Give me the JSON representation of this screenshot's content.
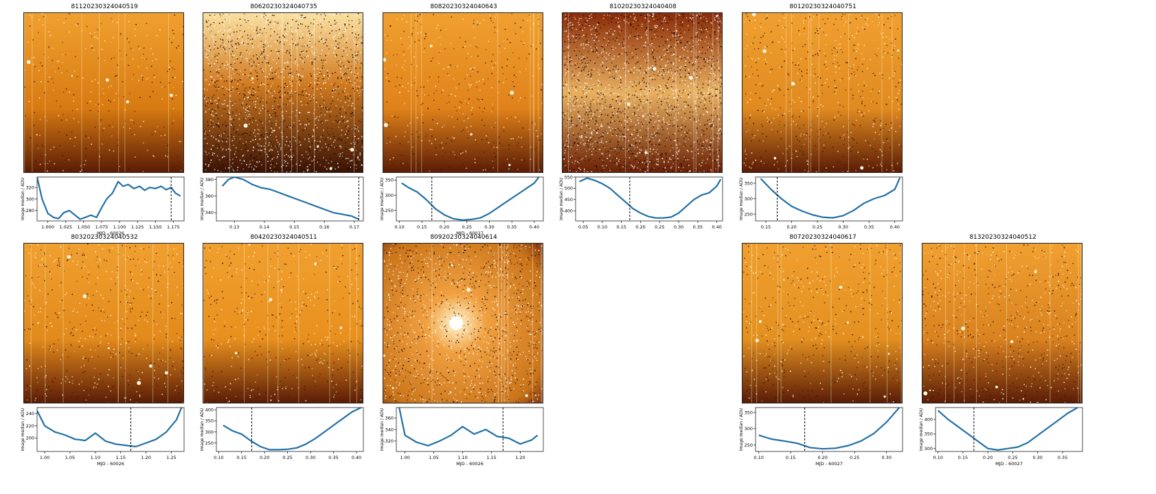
{
  "figure": {
    "ylabel": "Image median / ADU"
  },
  "colors": {
    "line": "#1f6fa6",
    "frame": "#222222",
    "vline": "#000000"
  },
  "chart_data": [
    {
      "type": "line",
      "title": "81120230324040519",
      "xlabel": "MJD - 60026",
      "ylabel": "Image median / ADU",
      "xlim": [
        0.985,
        1.19
      ],
      "ylim": [
        262,
        338
      ],
      "xticks": [
        1.0,
        1.025,
        1.05,
        1.075,
        1.1,
        1.125,
        1.15,
        1.175
      ],
      "xticklabels": [
        "1.000",
        "1.025",
        "1.050",
        "1.075",
        "1.100",
        "1.125",
        "1.150",
        "1.175"
      ],
      "yticks": [
        280,
        300,
        320
      ],
      "yticklabels": [
        "280",
        "300",
        "320"
      ],
      "vline": 1.172,
      "x": [
        0.985,
        0.992,
        1.0,
        1.008,
        1.015,
        1.022,
        1.03,
        1.038,
        1.045,
        1.052,
        1.06,
        1.068,
        1.075,
        1.082,
        1.09,
        1.098,
        1.105,
        1.112,
        1.12,
        1.128,
        1.135,
        1.142,
        1.15,
        1.158,
        1.165,
        1.172,
        1.178,
        1.185
      ],
      "y": [
        338,
        300,
        275,
        268,
        266,
        276,
        280,
        272,
        265,
        268,
        272,
        268,
        285,
        300,
        310,
        330,
        322,
        325,
        318,
        322,
        315,
        320,
        318,
        322,
        316,
        320,
        310,
        305
      ]
    },
    {
      "type": "line",
      "title": "80620230324040735",
      "xlabel": "",
      "ylabel": "Image median / ADU",
      "xlim": [
        0.124,
        0.173
      ],
      "ylim": [
        330,
        383
      ],
      "xticks": [
        0.13,
        0.14,
        0.15,
        0.16,
        0.17
      ],
      "xticklabels": [
        "0.13",
        "0.14",
        "0.15",
        "0.16",
        "0.17"
      ],
      "yticks": [
        340,
        360,
        380
      ],
      "yticklabels": [
        "340",
        "360",
        "380"
      ],
      "vline": 0.1715,
      "x": [
        0.126,
        0.128,
        0.13,
        0.133,
        0.136,
        0.139,
        0.142,
        0.145,
        0.148,
        0.151,
        0.154,
        0.157,
        0.16,
        0.163,
        0.166,
        0.169,
        0.1715
      ],
      "y": [
        372,
        380,
        383,
        380,
        374,
        370,
        368,
        364,
        360,
        356,
        352,
        348,
        344,
        340,
        338,
        336,
        332
      ]
    },
    {
      "type": "line",
      "title": "80820230324040643",
      "xlabel": "MJD - 60027",
      "ylabel": "Image median / ADU",
      "xlim": [
        0.093,
        0.42
      ],
      "ylim": [
        215,
        360
      ],
      "xticks": [
        0.1,
        0.15,
        0.2,
        0.25,
        0.3,
        0.35,
        0.4
      ],
      "xticklabels": [
        "0.10",
        "0.15",
        "0.20",
        "0.25",
        "0.30",
        "0.35",
        "0.40"
      ],
      "yticks": [
        250,
        300,
        350
      ],
      "yticklabels": [
        "250",
        "300",
        "350"
      ],
      "vline": 0.172,
      "x": [
        0.105,
        0.12,
        0.14,
        0.16,
        0.18,
        0.2,
        0.22,
        0.24,
        0.26,
        0.28,
        0.3,
        0.32,
        0.34,
        0.36,
        0.38,
        0.4,
        0.41
      ],
      "y": [
        340,
        325,
        310,
        285,
        255,
        235,
        222,
        218,
        220,
        225,
        240,
        260,
        280,
        300,
        320,
        340,
        360
      ]
    },
    {
      "type": "line",
      "title": "81020230324040408",
      "xlabel": "",
      "ylabel": "Image median / ADU",
      "xlim": [
        0.03,
        0.415
      ],
      "ylim": [
        355,
        550
      ],
      "xticks": [
        0.05,
        0.1,
        0.15,
        0.2,
        0.25,
        0.3,
        0.35,
        0.4
      ],
      "xticklabels": [
        "0.05",
        "0.10",
        "0.15",
        "0.20",
        "0.25",
        "0.30",
        "0.35",
        "0.40"
      ],
      "yticks": [
        400,
        450,
        500,
        550
      ],
      "yticklabels": [
        "400",
        "450",
        "500",
        "550"
      ],
      "vline": 0.172,
      "x": [
        0.04,
        0.06,
        0.08,
        0.1,
        0.12,
        0.14,
        0.16,
        0.18,
        0.2,
        0.22,
        0.24,
        0.26,
        0.28,
        0.3,
        0.32,
        0.34,
        0.36,
        0.38,
        0.4,
        0.41
      ],
      "y": [
        530,
        545,
        535,
        520,
        500,
        470,
        440,
        410,
        390,
        375,
        368,
        368,
        372,
        390,
        420,
        450,
        470,
        480,
        510,
        540
      ]
    },
    {
      "type": "line",
      "title": "80120230324040751",
      "xlabel": "",
      "ylabel": "Image median / ADU",
      "xlim": [
        0.13,
        0.415
      ],
      "ylim": [
        228,
        370
      ],
      "xticks": [
        0.15,
        0.2,
        0.25,
        0.3,
        0.35,
        0.4
      ],
      "xticklabels": [
        "0.15",
        "0.20",
        "0.25",
        "0.30",
        "0.35",
        "0.40"
      ],
      "yticks": [
        250,
        300,
        350
      ],
      "yticklabels": [
        "250",
        "300",
        "350"
      ],
      "vline": 0.172,
      "x": [
        0.14,
        0.16,
        0.18,
        0.2,
        0.22,
        0.24,
        0.26,
        0.28,
        0.3,
        0.32,
        0.34,
        0.36,
        0.38,
        0.4,
        0.41
      ],
      "y": [
        365,
        330,
        300,
        275,
        260,
        248,
        240,
        238,
        245,
        262,
        285,
        300,
        310,
        330,
        368
      ]
    },
    {
      "type": "line",
      "title": "80320230324040532",
      "xlabel": "MJD - 60026",
      "ylabel": "Image median / ADU",
      "xlim": [
        0.985,
        1.275
      ],
      "ylim": [
        178,
        250
      ],
      "xticks": [
        1.0,
        1.05,
        1.1,
        1.15,
        1.2,
        1.25
      ],
      "xticklabels": [
        "1.00",
        "1.05",
        "1.10",
        "1.15",
        "1.20",
        "1.25"
      ],
      "yticks": [
        200,
        220,
        240
      ],
      "yticklabels": [
        "200",
        "220",
        "240"
      ],
      "vline": 1.17,
      "x": [
        0.985,
        1.0,
        1.02,
        1.04,
        1.06,
        1.08,
        1.1,
        1.12,
        1.14,
        1.16,
        1.18,
        1.2,
        1.22,
        1.24,
        1.26,
        1.27
      ],
      "y": [
        245,
        220,
        210,
        205,
        198,
        196,
        208,
        195,
        190,
        188,
        186,
        192,
        198,
        210,
        230,
        250
      ]
    },
    {
      "type": "line",
      "title": "80420230324040511",
      "xlabel": "",
      "ylabel": "Image median / ADU",
      "xlim": [
        0.095,
        0.415
      ],
      "ylim": [
        212,
        410
      ],
      "xticks": [
        0.1,
        0.15,
        0.2,
        0.25,
        0.3,
        0.35,
        0.4
      ],
      "xticklabels": [
        "0.10",
        "0.15",
        "0.20",
        "0.25",
        "0.30",
        "0.35",
        "0.40"
      ],
      "yticks": [
        250,
        300,
        350,
        400
      ],
      "yticklabels": [
        "250",
        "300",
        "350",
        "400"
      ],
      "vline": 0.172,
      "x": [
        0.11,
        0.13,
        0.15,
        0.17,
        0.19,
        0.21,
        0.23,
        0.25,
        0.27,
        0.29,
        0.31,
        0.33,
        0.35,
        0.37,
        0.39,
        0.41
      ],
      "y": [
        330,
        305,
        290,
        260,
        235,
        220,
        220,
        222,
        228,
        245,
        270,
        300,
        330,
        360,
        390,
        410
      ]
    },
    {
      "type": "line",
      "title": "80920230324040614",
      "xlabel": "MJD - 60026",
      "ylabel": "Image median / ADU",
      "xlim": [
        0.985,
        1.24
      ],
      "ylim": [
        302,
        378
      ],
      "xticks": [
        1.0,
        1.05,
        1.1,
        1.15,
        1.2
      ],
      "xticklabels": [
        "1.00",
        "1.05",
        "1.10",
        "1.15",
        "1.20"
      ],
      "yticks": [
        320,
        340,
        360
      ],
      "yticklabels": [
        "320",
        "340",
        "360"
      ],
      "vline": 1.17,
      "x": [
        0.99,
        1.0,
        1.02,
        1.04,
        1.06,
        1.08,
        1.1,
        1.12,
        1.14,
        1.16,
        1.18,
        1.2,
        1.22,
        1.23
      ],
      "y": [
        378,
        330,
        318,
        312,
        320,
        330,
        345,
        332,
        340,
        328,
        325,
        315,
        322,
        330
      ]
    },
    {
      "type": "line",
      "title": "80720230324040617",
      "xlabel": "MJD - 60027",
      "ylabel": "Image median / ADU",
      "xlim": [
        0.095,
        0.325
      ],
      "ylim": [
        230,
        365
      ],
      "xticks": [
        0.1,
        0.15,
        0.2,
        0.25,
        0.3
      ],
      "xticklabels": [
        "0.10",
        "0.15",
        "0.20",
        "0.25",
        "0.30"
      ],
      "yticks": [
        250,
        300,
        350
      ],
      "yticklabels": [
        "250",
        "300",
        "350"
      ],
      "vline": 0.172,
      "x": [
        0.1,
        0.12,
        0.14,
        0.16,
        0.18,
        0.2,
        0.22,
        0.24,
        0.26,
        0.28,
        0.3,
        0.32
      ],
      "y": [
        280,
        268,
        262,
        255,
        242,
        238,
        240,
        248,
        262,
        285,
        320,
        365
      ]
    },
    {
      "type": "line",
      "title": "81320230324040512",
      "xlabel": "MJD - 60027",
      "ylabel": "Image median / ADU",
      "xlim": [
        0.095,
        0.39
      ],
      "ylim": [
        290,
        440
      ],
      "xticks": [
        0.1,
        0.15,
        0.2,
        0.25,
        0.3,
        0.35
      ],
      "xticklabels": [
        "0.10",
        "0.15",
        "0.20",
        "0.25",
        "0.30",
        "0.35"
      ],
      "yticks": [
        300,
        350,
        400
      ],
      "yticklabels": [
        "300",
        "350",
        "400"
      ],
      "vline": 0.172,
      "x": [
        0.1,
        0.12,
        0.14,
        0.16,
        0.18,
        0.2,
        0.22,
        0.24,
        0.26,
        0.28,
        0.3,
        0.32,
        0.34,
        0.36,
        0.38
      ],
      "y": [
        430,
        400,
        375,
        350,
        325,
        300,
        295,
        300,
        305,
        320,
        345,
        370,
        395,
        420,
        440
      ]
    }
  ]
}
